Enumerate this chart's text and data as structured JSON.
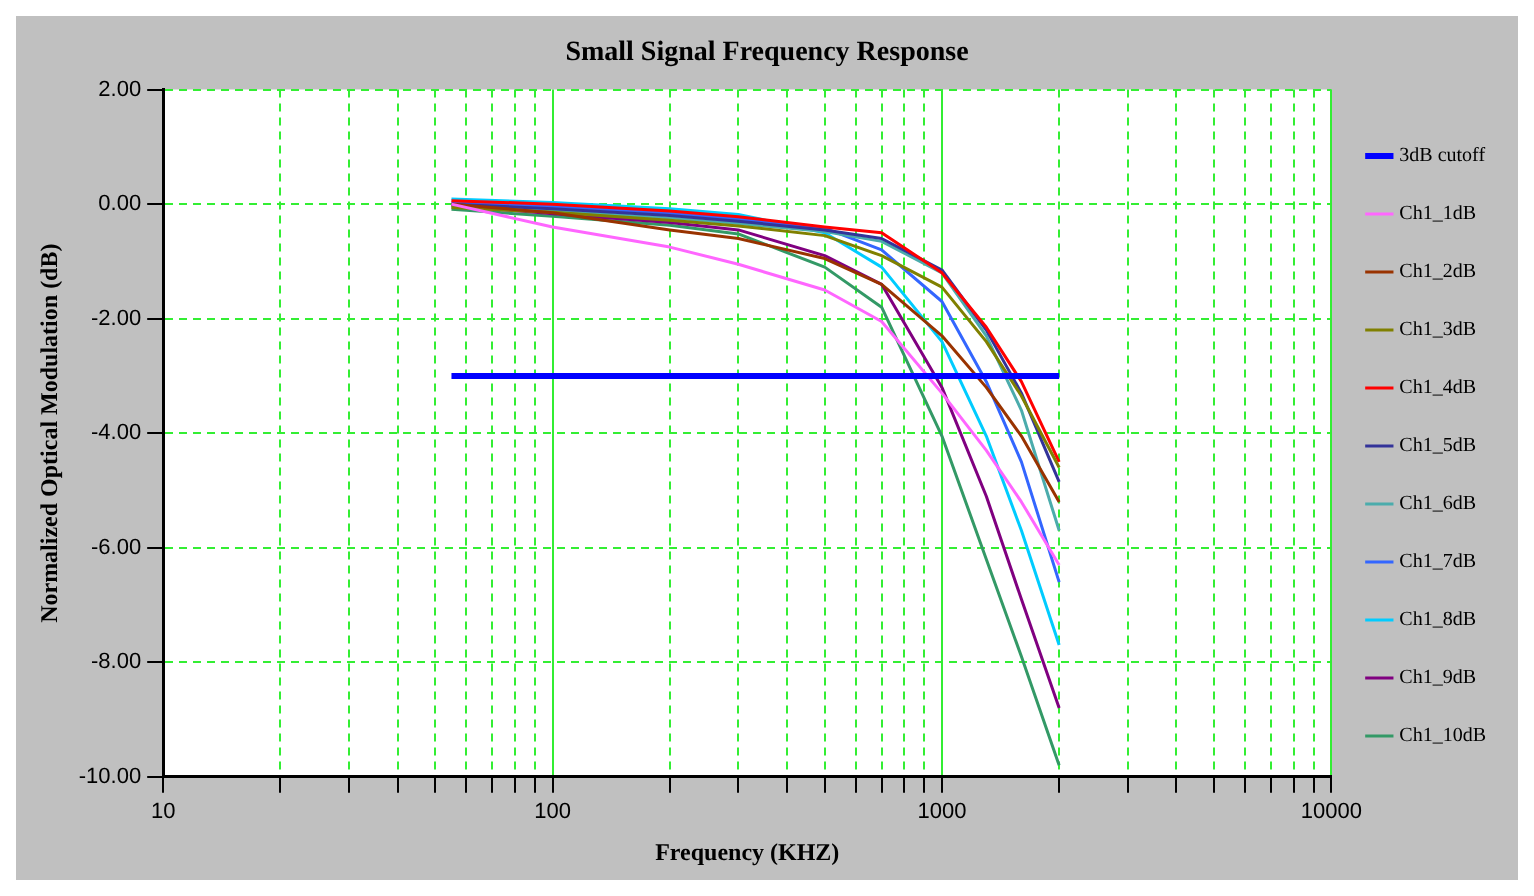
{
  "chart_data": {
    "type": "line",
    "title": "Small Signal Frequency Response",
    "xlabel": "Frequency (KHZ)",
    "ylabel": "Normalized Optical Modulation (dB)",
    "log": "x",
    "grid": true,
    "legend": "right",
    "xlim": [
      10,
      10000
    ],
    "xticks": [
      10,
      {
        "value": 20,
        "label": null
      },
      {
        "value": 30,
        "label": null
      },
      {
        "value": 40,
        "label": null
      },
      {
        "value": 50,
        "label": null
      },
      {
        "value": 60,
        "label": null
      },
      {
        "value": 70,
        "label": null
      },
      {
        "value": 80,
        "label": null
      },
      {
        "value": 90,
        "label": null
      },
      100,
      {
        "value": 200,
        "label": null
      },
      {
        "value": 300,
        "label": null
      },
      {
        "value": 400,
        "label": null
      },
      {
        "value": 500,
        "label": null
      },
      {
        "value": 600,
        "label": null
      },
      {
        "value": 700,
        "label": null
      },
      {
        "value": 800,
        "label": null
      },
      {
        "value": 900,
        "label": null
      },
      1000,
      {
        "value": 2000,
        "label": null
      },
      {
        "value": 3000,
        "label": null
      },
      {
        "value": 4000,
        "label": null
      },
      {
        "value": 5000,
        "label": null
      },
      {
        "value": 6000,
        "label": null
      },
      {
        "value": 7000,
        "label": null
      },
      {
        "value": 8000,
        "label": null
      },
      {
        "value": 9000,
        "label": null
      },
      10000
    ],
    "ylim": [
      -10,
      2
    ],
    "yticks": [
      {
        "value": -10,
        "label": "-10.00"
      },
      {
        "value": -8,
        "label": "-8.00"
      },
      {
        "value": -6,
        "label": "-6.00"
      },
      {
        "value": -4,
        "label": "-4.00"
      },
      {
        "value": -2,
        "label": "-2.00"
      },
      {
        "value": 0,
        "label": "0.00"
      },
      {
        "value": 2,
        "label": "2.00"
      }
    ],
    "x": [
      55,
      100,
      200,
      300,
      500,
      700,
      1000,
      1300,
      1600,
      2000
    ],
    "series": [
      {
        "name": "3dB cutoff",
        "color": "#0000ff",
        "x": [
          55,
          2000
        ],
        "values": [
          -3,
          -3
        ]
      },
      {
        "name": "Ch1_1dB",
        "color": "#ff66ff",
        "values": [
          0,
          -0.4,
          -0.75,
          -1.05,
          -1.5,
          -2.05,
          -3.3,
          -4.3,
          -5.2,
          -6.3
        ]
      },
      {
        "name": "Ch1_2dB",
        "color": "#993300",
        "values": [
          0,
          -0.15,
          -0.45,
          -0.6,
          -0.95,
          -1.4,
          -2.3,
          -3.2,
          -4.05,
          -5.2
        ]
      },
      {
        "name": "Ch1_3dB",
        "color": "#808000",
        "values": [
          -0.06,
          -0.14,
          -0.28,
          -0.38,
          -0.55,
          -0.9,
          -1.45,
          -2.4,
          -3.35,
          -4.6
        ]
      },
      {
        "name": "Ch1_4dB",
        "color": "#ff0000",
        "values": [
          0.06,
          0,
          -0.12,
          -0.22,
          -0.4,
          -0.5,
          -1.2,
          -2.15,
          -3.1,
          -4.5
        ]
      },
      {
        "name": "Ch1_5dB",
        "color": "#333399",
        "values": [
          0,
          -0.08,
          -0.2,
          -0.3,
          -0.45,
          -0.6,
          -1.15,
          -2.2,
          -3.3,
          -4.85
        ]
      },
      {
        "name": "Ch1_6dB",
        "color": "#4bacac",
        "values": [
          -0.04,
          -0.12,
          -0.24,
          -0.34,
          -0.48,
          -0.65,
          -1.2,
          -2.3,
          -3.6,
          -5.7
        ]
      },
      {
        "name": "Ch1_7dB",
        "color": "#3366ff",
        "values": [
          0.03,
          -0.04,
          -0.16,
          -0.26,
          -0.42,
          -0.8,
          -1.7,
          -3.1,
          -4.5,
          -6.6
        ]
      },
      {
        "name": "Ch1_8dB",
        "color": "#00ccff",
        "values": [
          0.09,
          0.03,
          -0.08,
          -0.18,
          -0.5,
          -1.1,
          -2.4,
          -4.05,
          -5.7,
          -7.7
        ]
      },
      {
        "name": "Ch1_9dB",
        "color": "#800080",
        "values": [
          -0.02,
          -0.17,
          -0.32,
          -0.45,
          -0.9,
          -1.4,
          -3.2,
          -5.1,
          -6.9,
          -8.8
        ]
      },
      {
        "name": "Ch1_10dB",
        "color": "#339966",
        "values": [
          -0.09,
          -0.21,
          -0.37,
          -0.52,
          -1.1,
          -1.8,
          -4.05,
          -6.2,
          -7.9,
          -9.8
        ]
      }
    ]
  }
}
